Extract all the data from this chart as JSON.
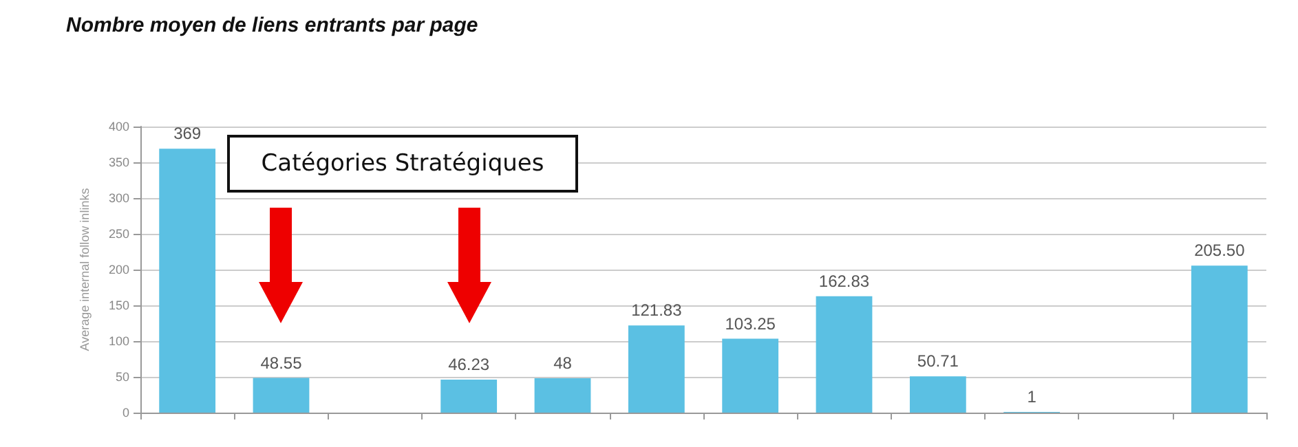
{
  "chart_data": {
    "type": "bar",
    "title": "Nombre moyen de liens entrants par page",
    "ylabel": "Average internal follow inlinks",
    "categories": [
      null,
      null,
      null,
      null,
      null,
      null,
      null,
      null,
      null,
      null,
      null,
      null
    ],
    "values": [
      369,
      48.55,
      null,
      46.23,
      48,
      121.83,
      103.25,
      162.83,
      50.71,
      1,
      null,
      205.5
    ],
    "value_labels": [
      "369",
      "48.55",
      null,
      "46.23",
      "48",
      "121.83",
      "103.25",
      "162.83",
      "50.71",
      "1",
      null,
      "205.50"
    ],
    "color": "#5bc0e3",
    "ylim": [
      0,
      400
    ],
    "yticks": [
      0,
      50,
      100,
      150,
      200,
      250,
      300,
      350,
      400
    ],
    "grid": "y",
    "annotations": [
      "Catégories Stratégiques"
    ]
  }
}
